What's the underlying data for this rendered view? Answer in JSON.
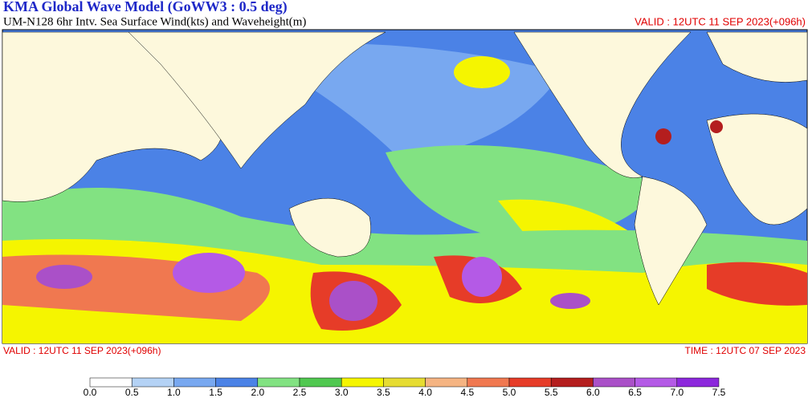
{
  "header": {
    "title": "KMA  Global Wave Model (GoWW3 : 0.5 deg)",
    "subtitle": "UM-N128  6hr Intv. Sea Surface Wind(kts) and Waveheight(m)",
    "valid": "VALID : 12UTC 11 SEP 2023(+096h)"
  },
  "footer": {
    "valid": "VALID : 12UTC 11 SEP 2023(+096h)",
    "time": "TIME : 12UTC 07 SEP 2023"
  },
  "colorbar": {
    "ticks": [
      {
        "value": 0,
        "label": "0.0"
      },
      0.5,
      {
        "value": 1,
        "label": "1.0"
      },
      1.5,
      {
        "value": 2,
        "label": "2.0"
      },
      2.5,
      {
        "value": 3,
        "label": "3.0"
      },
      3.5,
      {
        "value": 4,
        "label": "4.0"
      },
      4.5,
      {
        "value": 5,
        "label": "5.0"
      },
      5.5,
      {
        "value": 6,
        "label": "6.0"
      },
      6.5,
      {
        "value": 7,
        "label": "7.0"
      },
      7.5
    ],
    "colors": [
      "#ffffff",
      "#b4d2f5",
      "#78a8f0",
      "#4b82e6",
      "#82e282",
      "#50c850",
      "#f5f500",
      "#e6dc32",
      "#f5b482",
      "#f07850",
      "#e63c28",
      "#b41e1e",
      "#aa50c8",
      "#b45ae6",
      "#8c28dc"
    ]
  }
}
